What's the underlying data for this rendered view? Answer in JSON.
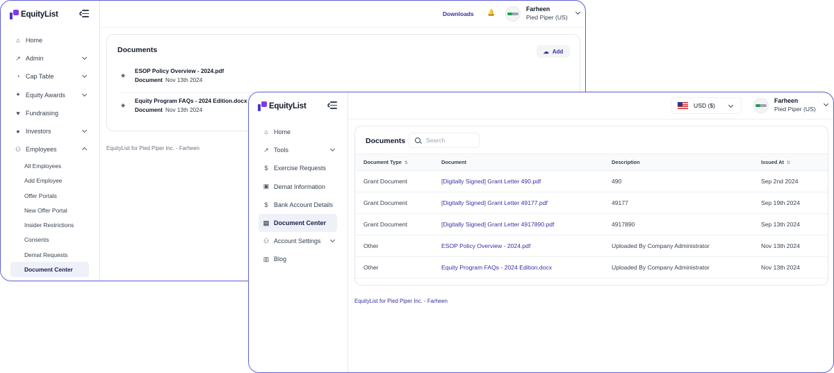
{
  "brand": {
    "name": "EquityList"
  },
  "window1": {
    "header": {
      "downloads_label": "Downloads",
      "user_name": "Farheen",
      "user_org": "Pied Piper (US)"
    },
    "sidebar": {
      "items": [
        {
          "label": "Home",
          "icon": "home-icon"
        },
        {
          "label": "Admin",
          "icon": "chart-icon"
        },
        {
          "label": "Cap Table",
          "icon": "pie-chart-icon"
        },
        {
          "label": "Equity Awards",
          "icon": "badge-icon"
        },
        {
          "label": "Fundraising",
          "icon": "handshake-icon"
        },
        {
          "label": "Investors",
          "icon": "user-icon"
        },
        {
          "label": "Employees",
          "icon": "users-icon"
        }
      ],
      "sub_items": [
        {
          "label": "All Employees"
        },
        {
          "label": "Add Employee"
        },
        {
          "label": "Offer Portals"
        },
        {
          "label": "New Offer Portal"
        },
        {
          "label": "Insider Restrictions"
        },
        {
          "label": "Consents"
        },
        {
          "label": "Demat Requests"
        },
        {
          "label": "Document Center",
          "active": true
        }
      ]
    },
    "documents": {
      "title": "Documents",
      "add_label": "Add",
      "items": [
        {
          "name": "ESOP Policy Overview - 2024.pdf",
          "type": "Document",
          "date": "Nov 13th 2024"
        },
        {
          "name": "Equity Program FAQs - 2024 Edition.docx",
          "type": "Document",
          "date": "Nov 13th 2024"
        }
      ]
    },
    "footer": "EquityList for Pied Piper Inc. - Farheen"
  },
  "window2": {
    "header": {
      "currency_label": "USD ($)",
      "user_name": "Farheen",
      "user_org": "Pied Piper (US)"
    },
    "sidebar": {
      "items": [
        {
          "label": "Home",
          "icon": "home-icon"
        },
        {
          "label": "Tools",
          "icon": "chart-icon"
        },
        {
          "label": "Exercise Requests",
          "icon": "dollar-icon"
        },
        {
          "label": "Demat Information",
          "icon": "bank-icon"
        },
        {
          "label": "Bank Account Details",
          "icon": "dollar-icon"
        },
        {
          "label": "Document Center",
          "icon": "folder-icon",
          "active": true
        },
        {
          "label": "Account Settings",
          "icon": "users-icon"
        },
        {
          "label": "Blog",
          "icon": "document-icon"
        }
      ]
    },
    "documents": {
      "title": "Documents",
      "search_placeholder": "Search",
      "columns": [
        "Document Type",
        "Document",
        "Description",
        "Issued At"
      ],
      "rows": [
        [
          "Grant Document",
          "[Digitally Signed] Grant Letter 490.pdf",
          "490",
          "Sep 2nd 2024"
        ],
        [
          "Grant Document",
          "[Digitally Signed] Grant Letter 49177.pdf",
          "49177",
          "Sep 19th 2024"
        ],
        [
          "Grant Document",
          "[Digitally Signed] Grant Letter 4917890.pdf",
          "4917890",
          "Sep 13th 2024"
        ],
        [
          "Other",
          "ESOP Policy Overview - 2024.pdf",
          "Uploaded By Company Administrator",
          "Nov 13th 2024"
        ],
        [
          "Other",
          "Equity Program FAQs - 2024 Edition.docx",
          "Uploaded By Company Administrator",
          "Nov 13th 2024"
        ]
      ]
    },
    "footer": "EquityList for Pied Piper Inc. - Farheen"
  },
  "colors": {
    "accent": "#5b5bd6",
    "link": "#3730a3",
    "active_bg": "#eef1f8"
  }
}
